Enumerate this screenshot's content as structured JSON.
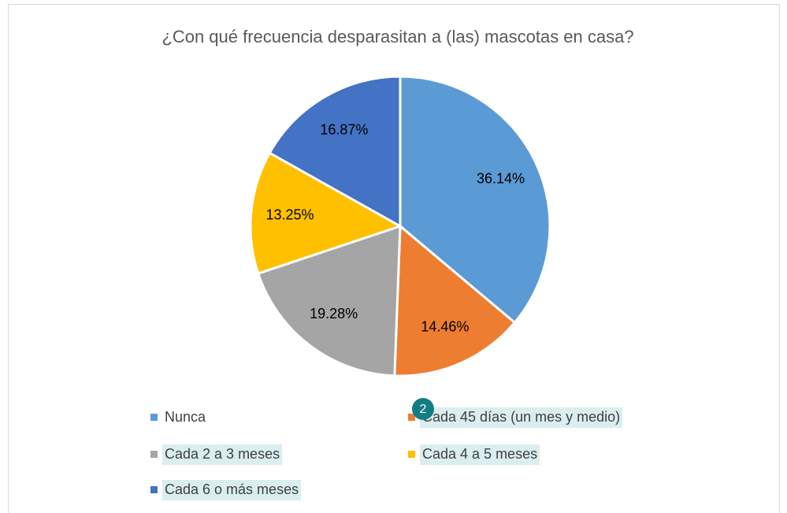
{
  "chart_data": {
    "type": "pie",
    "title": "¿Con qué frecuencia desparasitan a (las) mascotas en casa?",
    "categories": [
      "Nunca",
      "Cada 45 días (un mes y medio)",
      "Cada 2 a 3 meses",
      "Cada 4 a 5 meses",
      "Cada 6 o más meses"
    ],
    "values": [
      36.14,
      14.46,
      19.28,
      13.25,
      16.87
    ],
    "value_labels": [
      "36.14%",
      "14.46%",
      "19.28%",
      "13.25%",
      "16.87%"
    ],
    "colors": [
      "#5b9bd5",
      "#ed7d31",
      "#a5a5a5",
      "#ffc000",
      "#4472c4"
    ],
    "legend": "bottom",
    "annotation": "2"
  }
}
